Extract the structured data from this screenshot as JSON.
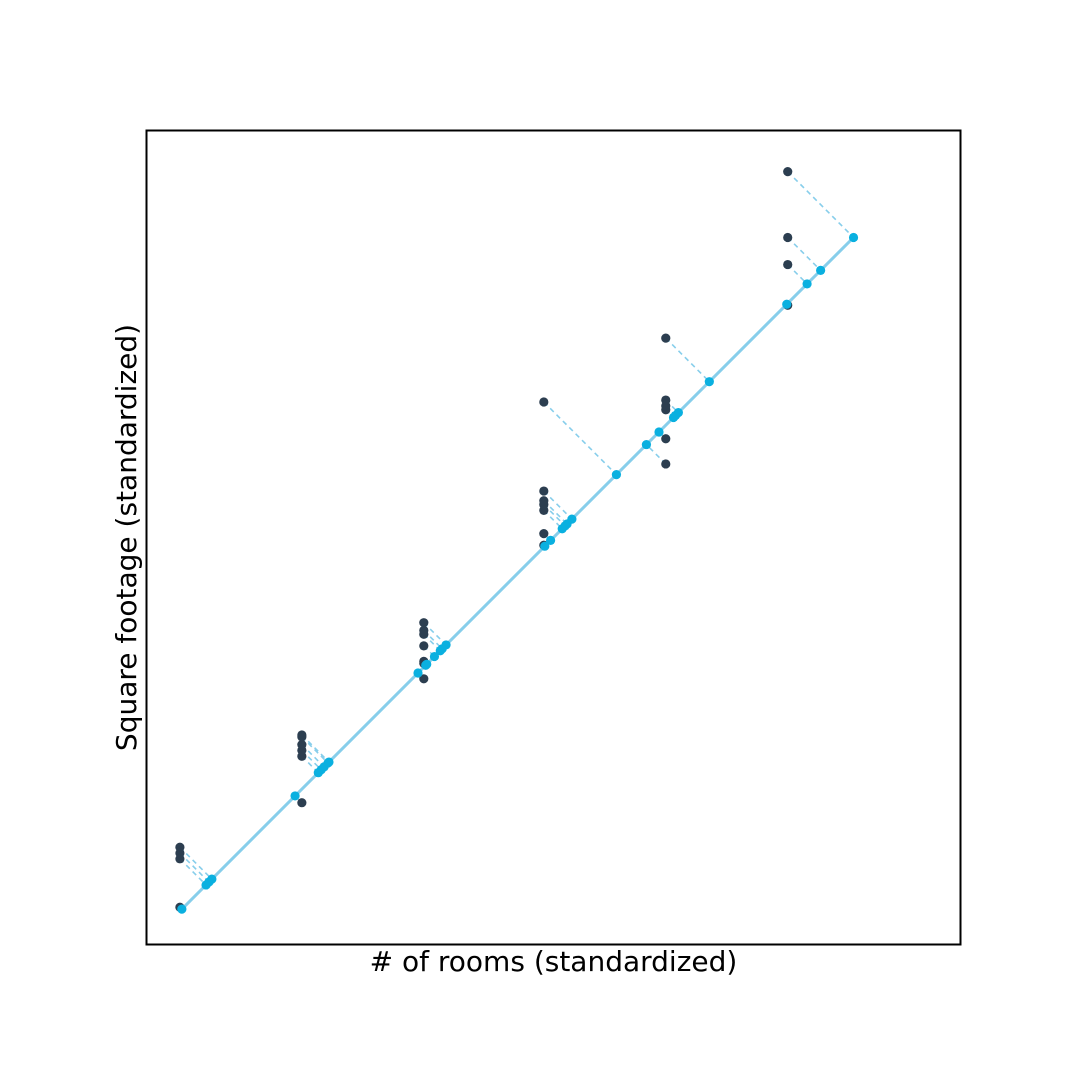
{
  "chart_data": {
    "type": "scatter",
    "title": "",
    "xlabel": "# of rooms (standardized)",
    "ylabel": "Square footage (standardized)",
    "grid": false,
    "ticks_visible": false,
    "xlim": [
      -2.0,
      2.2
    ],
    "ylim": [
      -2.0,
      2.2
    ],
    "fit_line": {
      "slope": 1,
      "intercept": 0,
      "x_range": [
        -1.82,
        1.66
      ],
      "color": "#87ceeb"
    },
    "colors": {
      "original_point": "#2c3e50",
      "projected_point": "#0ab0e0",
      "projection_line": "#87ceeb"
    },
    "points": [
      {
        "x": -1.83,
        "y": -1.81
      },
      {
        "x": -1.83,
        "y": -1.5
      },
      {
        "x": -1.83,
        "y": -1.53
      },
      {
        "x": -1.83,
        "y": -1.56
      },
      {
        "x": -1.2,
        "y": -1.27
      },
      {
        "x": -1.2,
        "y": -1.03
      },
      {
        "x": -1.2,
        "y": -1.0
      },
      {
        "x": -1.2,
        "y": -0.97
      },
      {
        "x": -1.2,
        "y": -0.93
      },
      {
        "x": -1.2,
        "y": -0.92
      },
      {
        "x": -0.57,
        "y": -0.34
      },
      {
        "x": -0.57,
        "y": -0.38
      },
      {
        "x": -0.57,
        "y": -0.4
      },
      {
        "x": -0.57,
        "y": -0.46
      },
      {
        "x": -0.57,
        "y": -0.54
      },
      {
        "x": -0.57,
        "y": -0.55
      },
      {
        "x": -0.57,
        "y": -0.63
      },
      {
        "x": 0.05,
        "y": 0.34
      },
      {
        "x": 0.05,
        "y": 0.29
      },
      {
        "x": 0.05,
        "y": 0.27
      },
      {
        "x": 0.05,
        "y": 0.24
      },
      {
        "x": 0.05,
        "y": 0.12
      },
      {
        "x": 0.05,
        "y": 0.06
      },
      {
        "x": 0.05,
        "y": 0.8
      },
      {
        "x": 0.68,
        "y": 1.13
      },
      {
        "x": 0.68,
        "y": 0.81
      },
      {
        "x": 0.68,
        "y": 0.78
      },
      {
        "x": 0.68,
        "y": 0.76
      },
      {
        "x": 0.68,
        "y": 0.61
      },
      {
        "x": 0.68,
        "y": 0.48
      },
      {
        "x": 1.31,
        "y": 1.99
      },
      {
        "x": 1.31,
        "y": 1.65
      },
      {
        "x": 1.31,
        "y": 1.51
      },
      {
        "x": 1.31,
        "y": 1.3
      }
    ]
  }
}
